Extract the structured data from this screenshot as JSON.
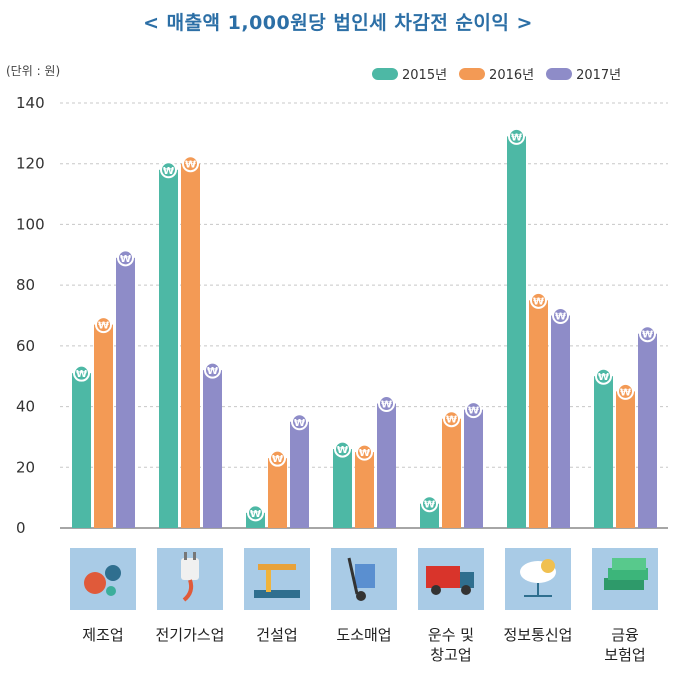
{
  "title": "< 매출액 1,000원당 법인세 차감전 순이익 >",
  "unit": "(단위 : 원)",
  "chart_data": {
    "type": "bar",
    "categories": [
      [
        "제조업"
      ],
      [
        "전기가스업"
      ],
      [
        "건설업"
      ],
      [
        "도소매업"
      ],
      [
        "운수 및",
        "창고업"
      ],
      [
        "정보통신업"
      ],
      [
        "금융",
        "보험업"
      ]
    ],
    "series": [
      {
        "name": "2015년",
        "color": "#4db8a5",
        "values": [
          51,
          118,
          5,
          26,
          8,
          129,
          50
        ]
      },
      {
        "name": "2016년",
        "color": "#f39a55",
        "values": [
          67,
          120,
          23,
          25,
          36,
          75,
          45
        ]
      },
      {
        "name": "2017년",
        "color": "#8e8cc8",
        "values": [
          89,
          52,
          35,
          41,
          39,
          70,
          64
        ]
      }
    ],
    "yticks": [
      0,
      20,
      40,
      60,
      80,
      100,
      120,
      140
    ],
    "ylim": [
      0,
      140
    ],
    "grid": true,
    "legend": "top-right",
    "marker_symbol": "₩"
  },
  "icons": [
    "gears-icon",
    "power-plug-icon",
    "oil-pump-icon",
    "hand-truck-icon",
    "truck-icon",
    "cloud-network-icon",
    "money-stack-icon"
  ]
}
